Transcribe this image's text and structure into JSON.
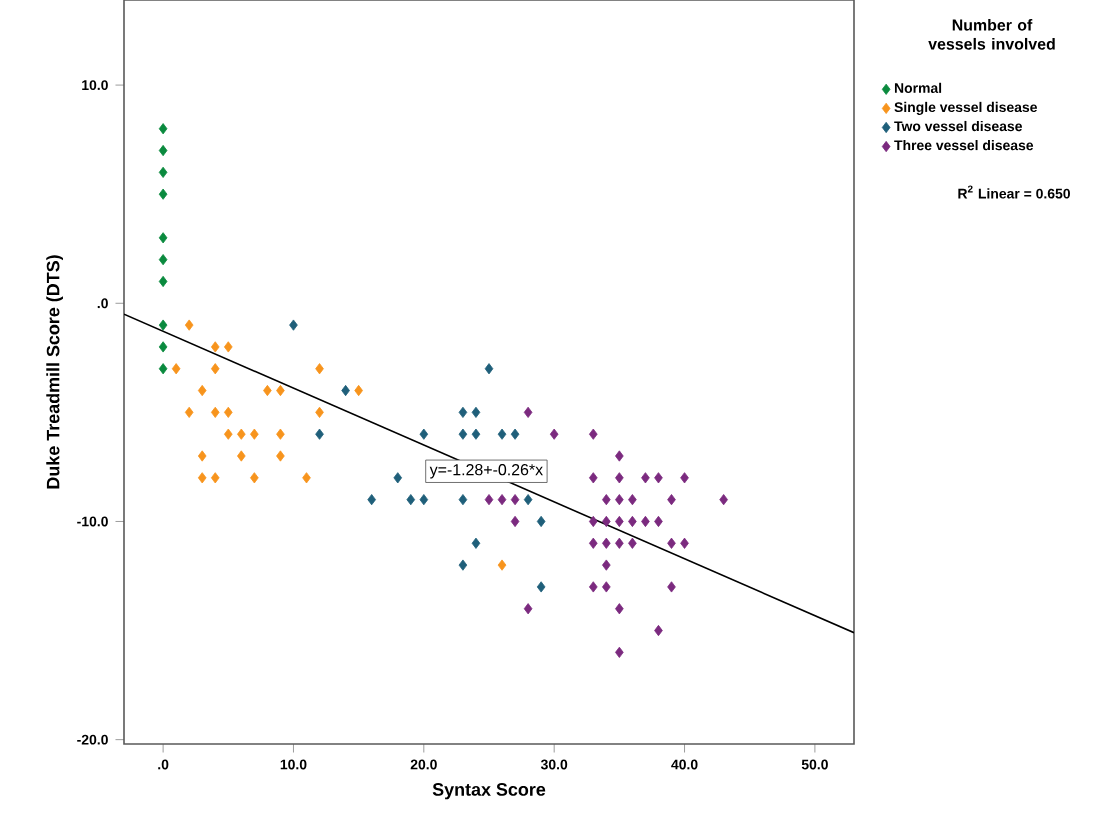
{
  "chart_data": {
    "type": "scatter",
    "xlabel": "Syntax Score",
    "ylabel": "Duke Treadmill Score (DTS)",
    "legend_title": "Number of vessels involved",
    "legend": "right",
    "grid": false,
    "xlim": [
      -3,
      53
    ],
    "ylim": [
      -20.2,
      13.9
    ],
    "xticks": [
      {
        "value": 0,
        "label": ".0"
      },
      {
        "value": 10,
        "label": "10.0"
      },
      {
        "value": 20,
        "label": "20.0"
      },
      {
        "value": 30,
        "label": "30.0"
      },
      {
        "value": 40,
        "label": "40.0"
      },
      {
        "value": 50,
        "label": "50.0"
      }
    ],
    "yticks": [
      {
        "value": -20,
        "label": "-20.0"
      },
      {
        "value": -10,
        "label": "-10.0"
      },
      {
        "value": 0,
        "label": ".0"
      },
      {
        "value": 10,
        "label": "10.0"
      }
    ],
    "series": [
      {
        "name": "Normal",
        "color": "#0a8a3e",
        "marker": "diamond",
        "x": [
          0,
          0,
          0,
          0,
          0,
          0,
          0,
          0,
          0,
          0
        ],
        "values": [
          8,
          7,
          6,
          5,
          3,
          2,
          1,
          -1,
          -2,
          -3
        ]
      },
      {
        "name": "Single vessel disease",
        "color": "#f7941d",
        "marker": "diamond",
        "x": [
          2,
          4,
          5,
          1,
          4,
          12,
          3,
          8,
          9,
          15,
          2,
          4,
          5,
          12,
          5,
          6,
          7,
          9,
          3,
          6,
          9,
          3,
          4,
          7,
          11,
          26
        ],
        "values": [
          -1,
          -2,
          -2,
          -3,
          -3,
          -3,
          -4,
          -4,
          -4,
          -4,
          -5,
          -5,
          -5,
          -5,
          -6,
          -6,
          -6,
          -6,
          -7,
          -7,
          -7,
          -8,
          -8,
          -8,
          -8,
          -12
        ]
      },
      {
        "name": "Two vessel disease",
        "color": "#1f5f7a",
        "marker": "diamond",
        "x": [
          10,
          14,
          12,
          18,
          16,
          25,
          23,
          24,
          20,
          23,
          24,
          26,
          27,
          19,
          20,
          23,
          28,
          29,
          24,
          23,
          29
        ],
        "values": [
          -1,
          -4,
          -6,
          -8,
          -9,
          -3,
          -5,
          -5,
          -6,
          -6,
          -6,
          -6,
          -6,
          -9,
          -9,
          -9,
          -9,
          -10,
          -11,
          -12,
          -13
        ]
      },
      {
        "name": "Three vessel disease",
        "color": "#7b2a7f",
        "marker": "diamond",
        "x": [
          28,
          30,
          33,
          35,
          33,
          35,
          37,
          38,
          40,
          25,
          26,
          27,
          34,
          35,
          36,
          39,
          43,
          27,
          33,
          34,
          36,
          37,
          38,
          35,
          33,
          34,
          35,
          36,
          39,
          40,
          34,
          33,
          34,
          39,
          28,
          35,
          38,
          35
        ],
        "values": [
          -5,
          -6,
          -6,
          -7,
          -8,
          -8,
          -8,
          -8,
          -8,
          -9,
          -9,
          -9,
          -9,
          -9,
          -9,
          -9,
          -9,
          -10,
          -10,
          -10,
          -10,
          -10,
          -10,
          -10,
          -11,
          -11,
          -11,
          -11,
          -11,
          -11,
          -12,
          -13,
          -13,
          -13,
          -14,
          -14,
          -15,
          -16
        ]
      },
      {
        "type": "line",
        "color": "#000000",
        "x": [
          -3,
          53
        ],
        "values": [
          -0.5,
          -15.1
        ]
      }
    ],
    "annotations": [
      {
        "text": "y=-1.28+-0.26*x",
        "x": 24.8,
        "y": -7.7
      },
      "R$^{2}$ Linear = 0.650"
    ]
  }
}
